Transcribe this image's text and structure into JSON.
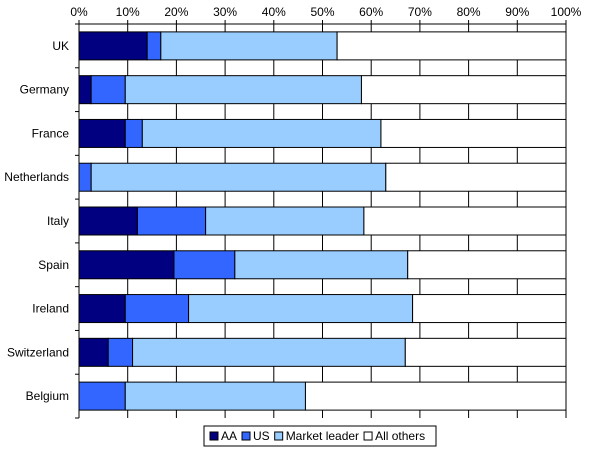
{
  "chart_data": {
    "type": "bar",
    "orientation": "horizontal",
    "stacked": "percent",
    "categories": [
      "UK",
      "Germany",
      "France",
      "Netherlands",
      "Italy",
      "Spain",
      "Ireland",
      "Switzerland",
      "Belgium"
    ],
    "series": [
      {
        "name": "AA",
        "color": "#000080",
        "values": [
          14,
          2.5,
          9.5,
          0,
          12,
          19.5,
          9.5,
          6,
          0
        ]
      },
      {
        "name": "US",
        "color": "#3366ff",
        "values": [
          2.8,
          7,
          3.5,
          2.5,
          14,
          12.5,
          13,
          5,
          9.5
        ]
      },
      {
        "name": "Market leader",
        "color": "#99ccff",
        "values": [
          36.2,
          48.5,
          49,
          60.5,
          32.5,
          35.5,
          46,
          56,
          37
        ]
      },
      {
        "name": "All others",
        "color": "#ffffff",
        "values": [
          47,
          42,
          38,
          37,
          41.5,
          32.5,
          31.5,
          33,
          53.5
        ]
      }
    ],
    "x_ticks": [
      "0%",
      "10%",
      "20%",
      "30%",
      "40%",
      "50%",
      "60%",
      "70%",
      "80%",
      "90%",
      "100%"
    ],
    "xlim": [
      0,
      100
    ],
    "x_axis_position": "top",
    "grid": true,
    "legend_position": "bottom",
    "title": "",
    "xlabel": "",
    "ylabel": ""
  }
}
